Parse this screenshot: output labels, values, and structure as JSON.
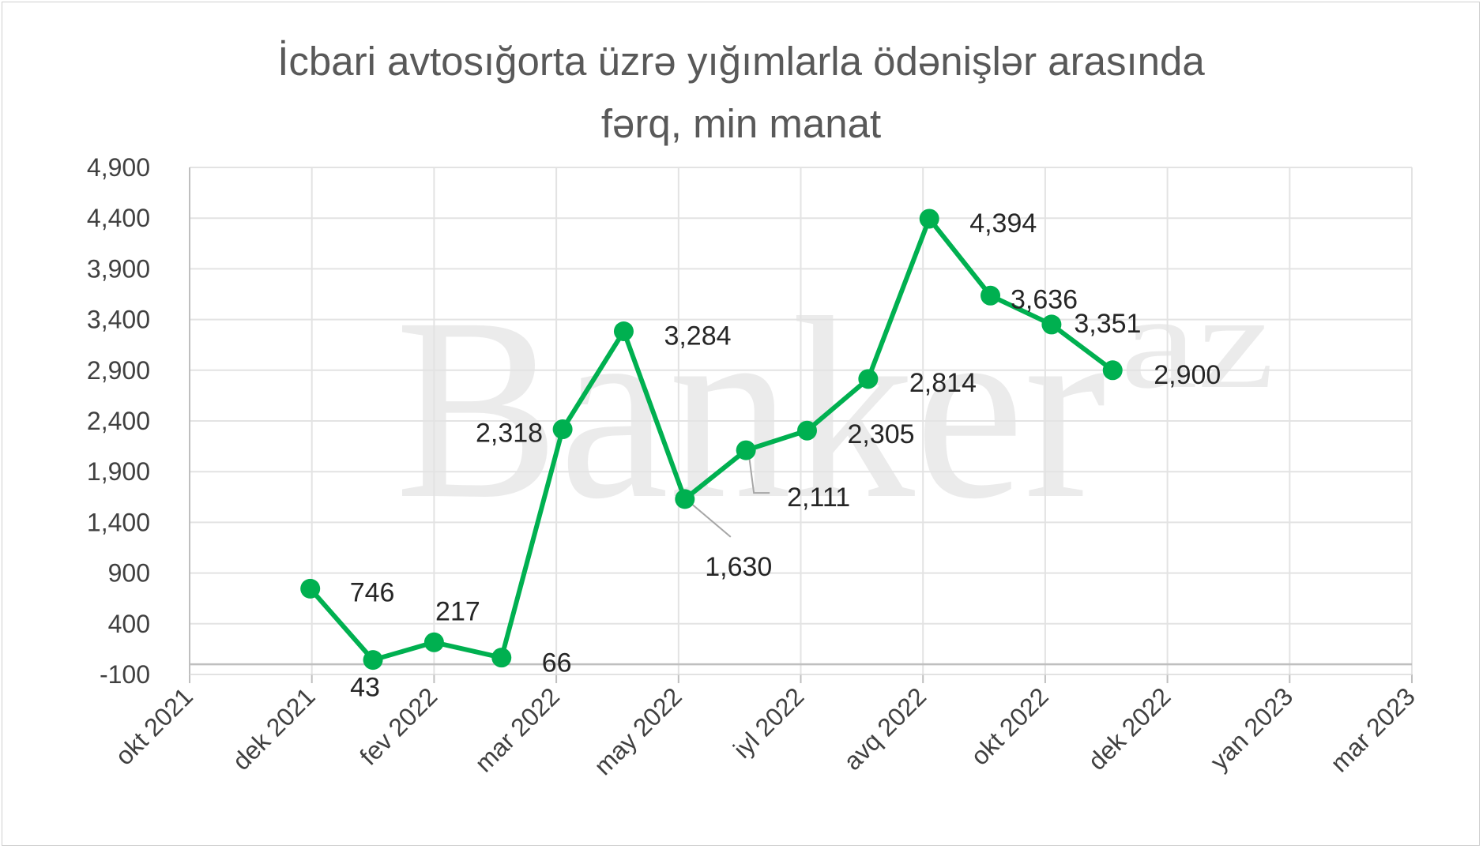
{
  "chart_data": {
    "type": "line",
    "title": "İcbari avtosığorta üzrə yığımlarla ödənişlər arasında fərq, min manat",
    "title_lines": [
      "İcbari avtosığorta üzrə yığımlarla ödənişlər arasında",
      "fərq, min manat"
    ],
    "watermark": "Banker",
    "watermark_suffix": "az",
    "xlabel": "",
    "ylabel": "",
    "ylim": [
      -100,
      4900
    ],
    "y_ticks": [
      -100,
      400,
      900,
      1400,
      1900,
      2400,
      2900,
      3400,
      3900,
      4400,
      4900
    ],
    "y_tick_labels": [
      "-100",
      "400",
      "900",
      "1,400",
      "1,900",
      "2,400",
      "2,900",
      "3,400",
      "3,900",
      "4,400",
      "4,900"
    ],
    "x_tick_labels": [
      "okt 2021",
      "dek 2021",
      "fev 2022",
      "mar 2022",
      "may 2022",
      "iyl 2022",
      "avq 2022",
      "okt 2022",
      "dek 2022",
      "yan 2023",
      "mar 2023"
    ],
    "grid": true,
    "series": [
      {
        "color": "#00b050",
        "points": [
          {
            "label": "746",
            "value": 746
          },
          {
            "label": "43",
            "value": 43
          },
          {
            "label": "217",
            "value": 217
          },
          {
            "label": "66",
            "value": 66
          },
          {
            "label": "2,318",
            "value": 2318
          },
          {
            "label": "3,284",
            "value": 3284
          },
          {
            "label": "1,630",
            "value": 1630
          },
          {
            "label": "2,111",
            "value": 2111
          },
          {
            "label": "2,305",
            "value": 2305
          },
          {
            "label": "2,814",
            "value": 2814
          },
          {
            "label": "4,394",
            "value": 4394
          },
          {
            "label": "3,636",
            "value": 3636
          },
          {
            "label": "3,351",
            "value": 3351
          },
          {
            "label": "2,900",
            "value": 2900
          }
        ]
      }
    ]
  }
}
